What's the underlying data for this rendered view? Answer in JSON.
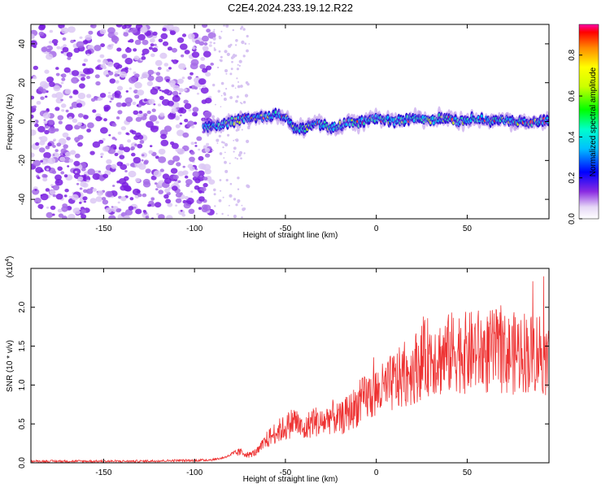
{
  "title": "C2E4.2024.233.19.12.R22",
  "chart_data": [
    {
      "type": "heatmap",
      "xlabel": "Height of straight line (km)",
      "ylabel": "Frequency (Hz)",
      "xlim": [
        -190,
        95
      ],
      "ylim": [
        -50,
        50
      ],
      "xticks": [
        -150,
        -100,
        -50,
        0,
        50
      ],
      "yticks": [
        -40,
        -20,
        0,
        20,
        40
      ],
      "grid": false,
      "ridge": {
        "x": [
          -95,
          -90,
          -85,
          -80,
          -75,
          -70,
          -65,
          -60,
          -55,
          -50,
          -45,
          -40,
          -35,
          -30,
          -25,
          -20,
          -15,
          -10,
          -5,
          0,
          5,
          10,
          15,
          20,
          25,
          30,
          35,
          40,
          45,
          50,
          55,
          60,
          65,
          70,
          75,
          80,
          85,
          90,
          95
        ],
        "y": [
          -2,
          -3,
          -2,
          0,
          1,
          2,
          3,
          2,
          4,
          2,
          -3,
          -4,
          -2,
          -1,
          -3,
          -2,
          0,
          -1,
          1,
          2,
          1,
          0,
          1,
          2,
          1,
          0,
          2,
          1,
          0,
          1,
          2,
          1,
          0,
          1,
          0,
          0,
          -1,
          0,
          1
        ]
      },
      "colorbar": {
        "label": "Normalized spectral amplitude",
        "range": [
          0,
          0.95
        ],
        "ticks": [
          "0.0",
          "0.2",
          "0.4",
          "0.6",
          "0.8"
        ]
      }
    },
    {
      "type": "line",
      "xlabel": "Height of straight line (km)",
      "ylabel": "SNR (10 * v/v)",
      "y_multiplier": "(x10",
      "y_multiplier_exp": "4",
      "y_multiplier_close": ")",
      "xlim": [
        -190,
        95
      ],
      "ylim": [
        0,
        2.5
      ],
      "xticks": [
        -150,
        -100,
        -50,
        0,
        50
      ],
      "yticks": [
        "0.0",
        "0.5",
        "1.0",
        "1.5",
        "2.0"
      ],
      "color": "#ee3333",
      "grid": false,
      "series": [
        {
          "x": [
            -190,
            -170,
            -150,
            -130,
            -110,
            -100,
            -90,
            -85,
            -80,
            -75,
            -70,
            -65,
            -60,
            -55,
            -50,
            -45,
            -40,
            -35,
            -30,
            -25,
            -20,
            -15,
            -10,
            -5,
            0,
            5,
            10,
            15,
            20,
            25,
            30,
            35,
            40,
            45,
            50,
            55,
            60,
            65,
            70,
            75,
            80,
            85,
            90,
            95
          ],
          "y": [
            0.02,
            0.02,
            0.02,
            0.02,
            0.03,
            0.03,
            0.04,
            0.06,
            0.1,
            0.14,
            0.1,
            0.15,
            0.3,
            0.4,
            0.45,
            0.55,
            0.4,
            0.55,
            0.5,
            0.6,
            0.55,
            0.65,
            0.75,
            0.85,
            0.9,
            0.95,
            1.05,
            1.1,
            1.2,
            1.3,
            1.4,
            1.35,
            1.4,
            1.45,
            1.4,
            1.45,
            1.4,
            1.45,
            1.4,
            1.4,
            1.45,
            1.4,
            1.45,
            1.3
          ]
        }
      ]
    }
  ]
}
